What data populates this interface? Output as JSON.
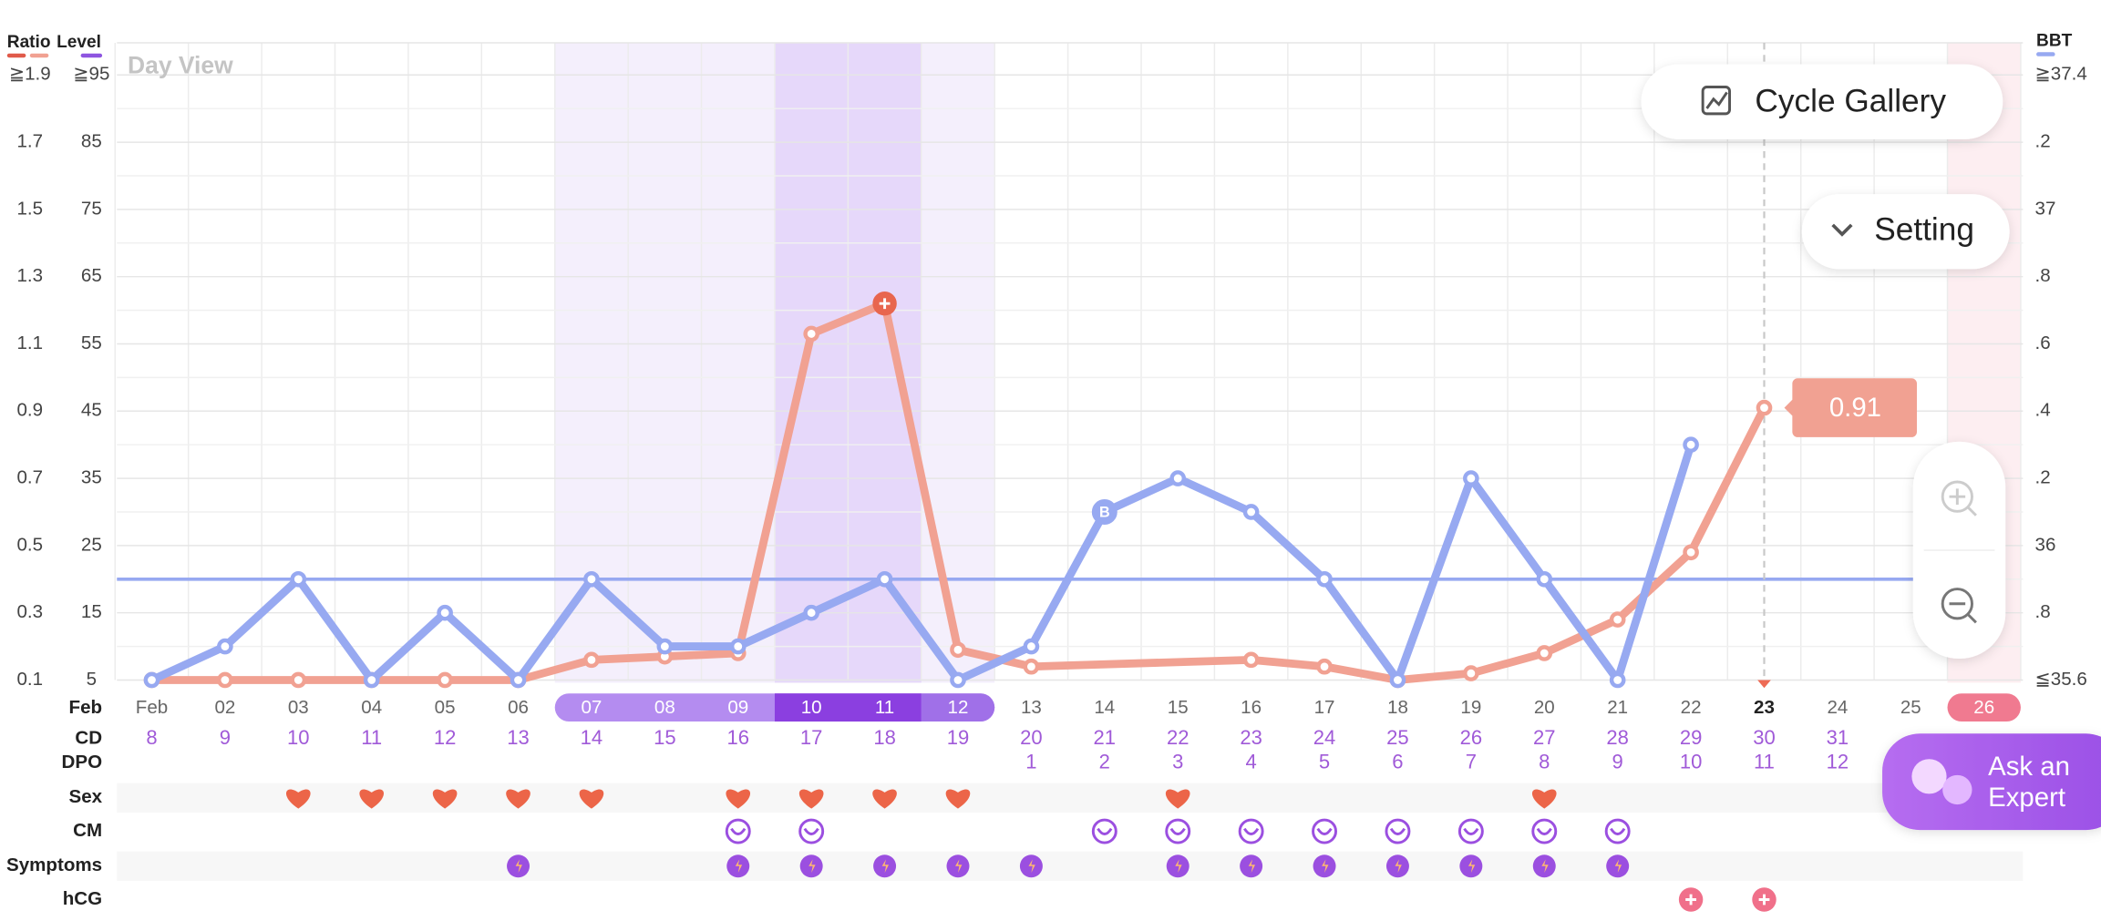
{
  "chart_data": {
    "type": "line",
    "title": "Day View",
    "categories": [
      "Feb",
      "02",
      "03",
      "04",
      "05",
      "06",
      "07",
      "08",
      "09",
      "10",
      "11",
      "12",
      "13",
      "14",
      "15",
      "16",
      "17",
      "18",
      "19",
      "20",
      "21",
      "22",
      "23",
      "24",
      "25",
      "26"
    ],
    "level_header": "Level",
    "ylim": [
      0.1,
      1.9
    ],
    "yticks": [
      0.1,
      0.3,
      0.5,
      0.7,
      0.9,
      1.1,
      1.3,
      1.5,
      1.7,
      {
        "value": 1.9,
        "label": "≧1.9"
      }
    ],
    "level_lim": [
      5,
      95
    ],
    "level_ticks": [
      5,
      15,
      25,
      35,
      45,
      55,
      65,
      75,
      85,
      {
        "value": 95,
        "label": "≧95"
      }
    ],
    "y2lim": [
      35.6,
      37.4
    ],
    "y2ticks": [
      {
        "value": 35.6,
        "label": "≦35.6"
      },
      {
        "value": 35.8,
        "label": ".8"
      },
      36,
      {
        "value": 36.2,
        "label": ".2"
      },
      {
        "value": 36.4,
        "label": ".4"
      },
      {
        "value": 36.6,
        "label": ".6"
      },
      {
        "value": 36.8,
        "label": ".8"
      },
      37,
      {
        "value": 37.2,
        "label": ".2"
      },
      {
        "value": 37.4,
        "label": "≧37.4"
      }
    ],
    "grid": true,
    "series": [
      {
        "name": "Ratio",
        "color": "#f1a192",
        "x": [
          "Feb",
          "02",
          "03",
          "04",
          "05",
          "06",
          "07",
          "08",
          "09",
          "10",
          "11",
          "12",
          "13",
          "16",
          "17",
          "18",
          "19",
          "20",
          "21",
          "22",
          "23"
        ],
        "values": [
          0.1,
          0.1,
          0.1,
          0.1,
          0.1,
          0.1,
          0.16,
          0.17,
          0.18,
          1.13,
          1.22,
          0.19,
          0.14,
          0.16,
          0.14,
          0.1,
          0.12,
          0.18,
          0.28,
          0.48,
          0.91
        ],
        "value_labels": [
          null,
          null,
          null,
          null,
          null,
          null,
          null,
          null,
          null,
          null,
          null,
          null,
          null,
          null,
          null,
          null,
          null,
          null,
          null,
          null,
          "0.91"
        ]
      },
      {
        "name": "BBT",
        "color": "#97a9f1",
        "axis": "y2",
        "x": [
          "Feb",
          "02",
          "03",
          "04",
          "05",
          "06",
          "07",
          "08",
          "09",
          "10",
          "11",
          "12",
          "13",
          "14",
          "15",
          "16",
          "17",
          "18",
          "19",
          "20",
          "21",
          "22"
        ],
        "values": [
          35.6,
          35.7,
          35.9,
          35.6,
          35.8,
          35.6,
          35.9,
          35.7,
          35.7,
          35.8,
          35.9,
          35.6,
          35.7,
          36.1,
          36.2,
          36.1,
          35.9,
          35.6,
          36.2,
          35.9,
          35.6,
          36.3
        ],
        "annotation": {
          "x": "14",
          "label": "B"
        }
      }
    ],
    "cover_line": 35.9,
    "today": "23",
    "fertile_days": [
      "07",
      "08",
      "09",
      "10",
      "11",
      "12"
    ],
    "peak_days": [
      "10",
      "11"
    ],
    "period_days": [
      "26"
    ],
    "rows": {
      "month": "Feb",
      "cd": {
        "label": "CD",
        "values": [
          8,
          9,
          10,
          11,
          12,
          13,
          14,
          15,
          16,
          17,
          18,
          19,
          20,
          21,
          22,
          23,
          24,
          25,
          26,
          27,
          28,
          29,
          30,
          31,
          null,
          null
        ]
      },
      "dpo": {
        "label": "DPO",
        "values": [
          null,
          null,
          null,
          null,
          null,
          null,
          null,
          null,
          null,
          null,
          null,
          null,
          1,
          2,
          3,
          4,
          5,
          6,
          7,
          8,
          9,
          10,
          11,
          12,
          null,
          null
        ]
      },
      "sex": {
        "label": "Sex",
        "days": [
          "03",
          "04",
          "05",
          "06",
          "07",
          "09",
          "10",
          "11",
          "12",
          "15",
          "20"
        ]
      },
      "cm": {
        "label": "CM",
        "days": [
          "09",
          "10",
          "14",
          "15",
          "16",
          "17",
          "18",
          "19",
          "20",
          "21"
        ]
      },
      "symptoms": {
        "label": "Symptoms",
        "days": [
          "06",
          "09",
          "10",
          "11",
          "12",
          "13",
          "15",
          "16",
          "17",
          "18",
          "19",
          "20",
          "21"
        ]
      },
      "hcg": {
        "label": "hCG",
        "days": [
          "22",
          "23"
        ]
      }
    }
  },
  "ui": {
    "cycle_gallery": "Cycle Gallery",
    "setting": "Setting",
    "ask_expert": [
      "Ask an",
      "Expert"
    ]
  }
}
